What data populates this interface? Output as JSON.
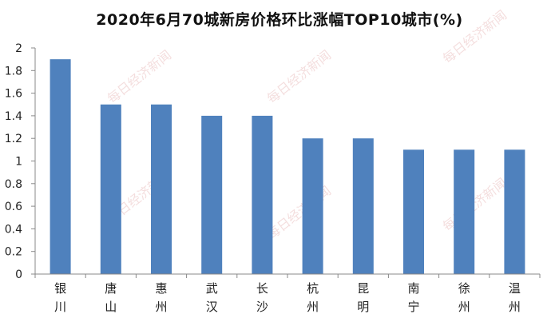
{
  "chart_data": {
    "type": "bar",
    "title": "2020年6月70城新房价格环比涨幅TOP10城市(%)",
    "categories": [
      "银川",
      "唐山",
      "惠州",
      "武汉",
      "长沙",
      "杭州",
      "昆明",
      "南宁",
      "徐州",
      "温州"
    ],
    "values": [
      1.9,
      1.5,
      1.5,
      1.4,
      1.4,
      1.2,
      1.2,
      1.1,
      1.1,
      1.1
    ],
    "ylim": [
      0,
      2
    ],
    "yticks": [
      "0",
      "0.2",
      "0.4",
      "0.6",
      "0.8",
      "1",
      "1.2",
      "1.4",
      "1.6",
      "1.8",
      "2"
    ],
    "xlabel": "",
    "ylabel": "",
    "grid": false,
    "legend": "none",
    "colors": {
      "bar": "#4f81bd",
      "axis": "#888888"
    }
  },
  "watermark": "每日经济新闻"
}
